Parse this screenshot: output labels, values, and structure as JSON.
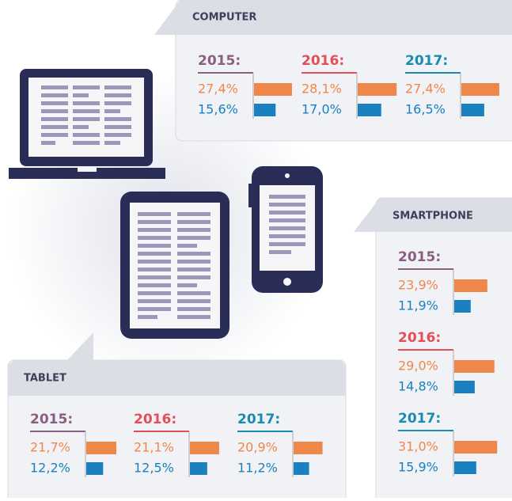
{
  "panels": [
    {
      "title": "COMPUTER",
      "years": [
        {
          "year": "2015:",
          "values": [
            27.4,
            15.6
          ],
          "value_labels": [
            "27,4%",
            "15,6%"
          ]
        },
        {
          "year": "2016:",
          "values": [
            28.1,
            17.0
          ],
          "value_labels": [
            "28,1%",
            "17,0%"
          ]
        },
        {
          "year": "2017:",
          "values": [
            27.4,
            16.5
          ],
          "value_labels": [
            "27,4%",
            "16,5%"
          ]
        }
      ]
    },
    {
      "title": "SMARTPHONE",
      "years": [
        {
          "year": "2015:",
          "values": [
            23.9,
            11.9
          ],
          "value_labels": [
            "23,9%",
            "11,9%"
          ]
        },
        {
          "year": "2016:",
          "values": [
            29.0,
            14.8
          ],
          "value_labels": [
            "29,0%",
            "14,8%"
          ]
        },
        {
          "year": "2017:",
          "values": [
            31.0,
            15.9
          ],
          "value_labels": [
            "31,0%",
            "15,9%"
          ]
        }
      ]
    },
    {
      "title": "TABLET",
      "years": [
        {
          "year": "2015:",
          "values": [
            21.7,
            12.2
          ],
          "value_labels": [
            "21,7%",
            "12,2%"
          ]
        },
        {
          "year": "2016:",
          "values": [
            21.1,
            12.5
          ],
          "value_labels": [
            "21,1%",
            "12,5%"
          ]
        },
        {
          "year": "2017:",
          "values": [
            20.9,
            11.2
          ],
          "value_labels": [
            "20,9%",
            "11,2%"
          ]
        }
      ]
    }
  ],
  "year_colors": [
    "#8a5e80",
    "#e44e57",
    "#1a8bb0"
  ],
  "series_colors": [
    "#f0874a",
    "#1a80c0"
  ]
}
